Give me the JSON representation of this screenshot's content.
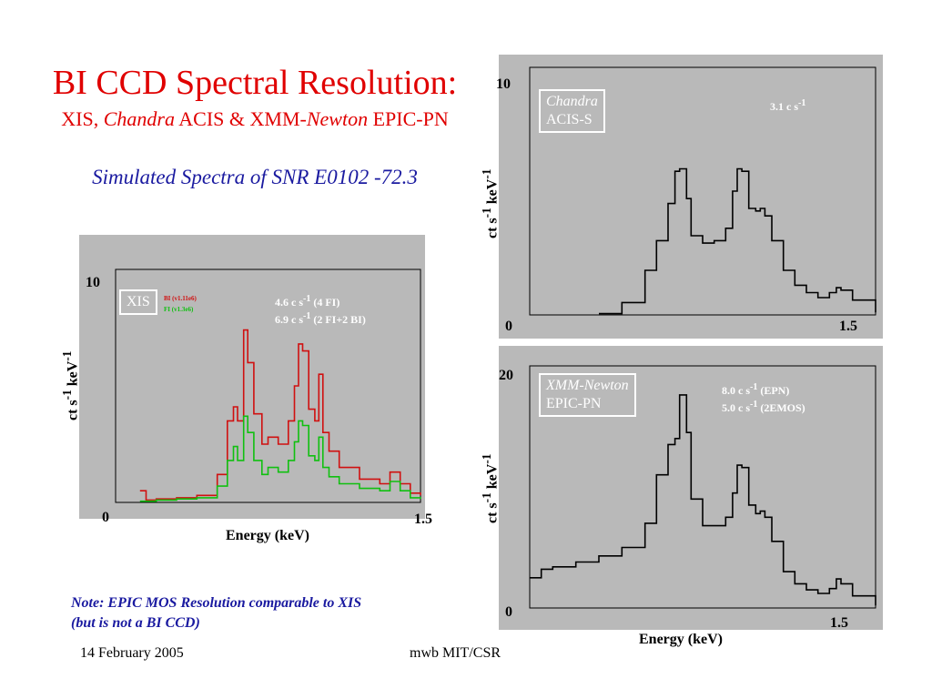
{
  "slide": {
    "title": "BI CCD Spectral Resolution:",
    "subtitle_parts": [
      "XIS, ",
      "Chandra",
      " ACIS & XMM-",
      "Newton",
      " EPIC-PN"
    ],
    "section": "Simulated Spectra of SNR E0102 -72.3",
    "note_line1": "Note: EPIC MOS Resolution comparable to XIS",
    "note_line2": "(but is not a BI CCD)",
    "footer_date": "14 February 2005",
    "footer_author": "mwb MIT/CSR"
  },
  "axis_text": {
    "ylabel": "ct s",
    "ylabel_exp": "-1",
    "ylabel_unit": " keV",
    "ylabel_unit_exp": "-1",
    "energy": "Energy (keV)"
  },
  "panels": {
    "xis": {
      "box_label": "XIS",
      "ytop": "10",
      "yzero": "0",
      "xmax": "1.5",
      "rate_line1": "4.6 c s",
      "rate_line1_exp": "-1",
      "rate_line1_tail": " (4 FI)",
      "rate_line2": "6.9 c s",
      "rate_line2_exp": "-1",
      "rate_line2_tail": " (2 FI+2 BI)",
      "legend_bi": "BI (v1.11e6)",
      "legend_fi": "FI (v1.3e6)",
      "colors": {
        "bi": "#d01010",
        "fi": "#10c010"
      }
    },
    "chandra": {
      "box_label_1": "Chandra",
      "box_label_2": "ACIS-S",
      "ytop": "10",
      "yzero": "0",
      "xmax": "1.5",
      "rate": "3.1  c s",
      "rate_exp": "-1"
    },
    "xmm": {
      "box_label_1": "XMM-Newton",
      "box_label_2": "EPIC-PN",
      "ytop": "20",
      "yzero": "0",
      "xmax": "1.5",
      "rate_line1": "8.0  c s",
      "rate_line1_exp": "-1",
      "rate_line1_tail": " (EPN)",
      "rate_line2": "5.0  c s",
      "rate_line2_exp": "-1",
      "rate_line2_tail": " (2EMOS)"
    }
  },
  "chart_data": [
    {
      "type": "line",
      "ylim": [
        0,
        10
      ],
      "xlim": [
        0,
        1.5
      ],
      "series": [
        {
          "name": "BI (v1.11e6)",
          "color": "#d01010",
          "x": [
            0.12,
            0.15,
            0.2,
            0.3,
            0.4,
            0.5,
            0.55,
            0.58,
            0.6,
            0.63,
            0.65,
            0.68,
            0.72,
            0.75,
            0.8,
            0.85,
            0.88,
            0.9,
            0.92,
            0.95,
            0.98,
            1.0,
            1.02,
            1.05,
            1.1,
            1.2,
            1.3,
            1.35,
            1.4,
            1.45,
            1.5
          ],
          "y": [
            0.5,
            0.1,
            0.15,
            0.2,
            0.3,
            1.2,
            3.5,
            4.1,
            3.5,
            7.4,
            6.0,
            3.8,
            2.5,
            2.8,
            2.5,
            3.5,
            5.0,
            6.8,
            6.5,
            4.0,
            3.5,
            5.5,
            3.0,
            2.2,
            1.5,
            1.0,
            0.8,
            1.3,
            0.8,
            0.4,
            0.3
          ]
        },
        {
          "name": "FI (v1.3e6)",
          "color": "#10c010",
          "x": [
            0.12,
            0.15,
            0.2,
            0.3,
            0.4,
            0.5,
            0.55,
            0.58,
            0.6,
            0.63,
            0.65,
            0.68,
            0.72,
            0.75,
            0.8,
            0.85,
            0.88,
            0.9,
            0.92,
            0.95,
            0.98,
            1.0,
            1.02,
            1.05,
            1.1,
            1.2,
            1.3,
            1.35,
            1.4,
            1.45,
            1.5
          ],
          "y": [
            0.05,
            0.05,
            0.1,
            0.15,
            0.2,
            0.7,
            1.8,
            2.4,
            1.8,
            3.7,
            3.0,
            1.8,
            1.2,
            1.5,
            1.3,
            1.8,
            2.6,
            3.5,
            3.3,
            2.0,
            1.8,
            2.8,
            1.5,
            1.1,
            0.8,
            0.6,
            0.5,
            0.9,
            0.5,
            0.2,
            0.15
          ]
        }
      ]
    },
    {
      "type": "line",
      "ylim": [
        0,
        10
      ],
      "xlim": [
        0,
        1.5
      ],
      "series": [
        {
          "color": "#000000",
          "x": [
            0.3,
            0.4,
            0.5,
            0.55,
            0.6,
            0.63,
            0.65,
            0.68,
            0.7,
            0.75,
            0.8,
            0.85,
            0.88,
            0.9,
            0.92,
            0.95,
            0.98,
            1.0,
            1.02,
            1.05,
            1.1,
            1.15,
            1.2,
            1.25,
            1.3,
            1.33,
            1.35,
            1.4,
            1.5
          ],
          "y": [
            0.05,
            0.5,
            1.8,
            3.0,
            4.5,
            5.8,
            5.9,
            4.7,
            3.2,
            2.9,
            3.0,
            3.5,
            5.0,
            5.9,
            5.8,
            4.3,
            4.2,
            4.3,
            4.0,
            3.0,
            1.8,
            1.2,
            0.9,
            0.7,
            0.9,
            1.1,
            1.0,
            0.6,
            0.1
          ]
        }
      ]
    },
    {
      "type": "line",
      "ylim": [
        0,
        20
      ],
      "xlim": [
        0,
        1.5
      ],
      "series": [
        {
          "color": "#000000",
          "x": [
            0.0,
            0.05,
            0.1,
            0.2,
            0.3,
            0.4,
            0.5,
            0.55,
            0.6,
            0.63,
            0.65,
            0.68,
            0.7,
            0.75,
            0.8,
            0.85,
            0.88,
            0.9,
            0.92,
            0.95,
            0.98,
            1.0,
            1.02,
            1.05,
            1.1,
            1.15,
            1.2,
            1.25,
            1.3,
            1.33,
            1.35,
            1.4,
            1.5
          ],
          "y": [
            2.5,
            3.2,
            3.4,
            3.8,
            4.3,
            5.0,
            7.0,
            11.0,
            13.5,
            14.0,
            17.6,
            14.5,
            9.0,
            6.8,
            6.8,
            7.5,
            9.5,
            11.8,
            11.6,
            8.5,
            7.8,
            8.0,
            7.5,
            5.5,
            3.0,
            2.0,
            1.5,
            1.2,
            1.6,
            2.4,
            2.0,
            1.0,
            0.2
          ]
        }
      ]
    }
  ]
}
